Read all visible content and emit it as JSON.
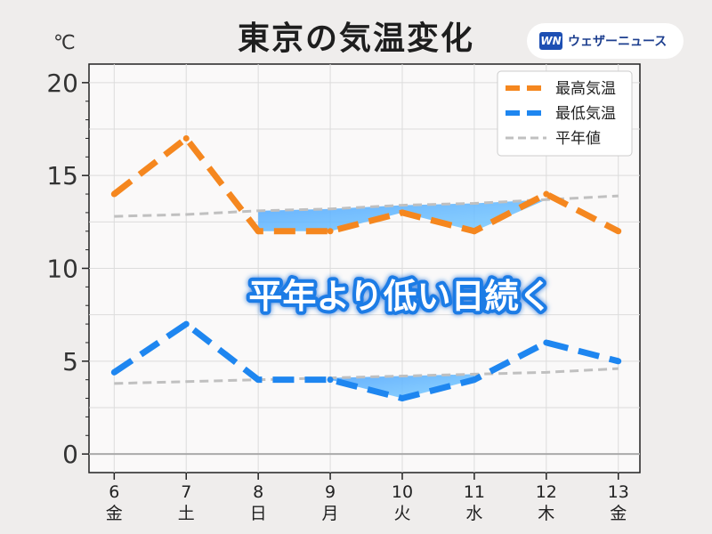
{
  "title": "東京の気温変化",
  "brand": {
    "logo_text": "WN",
    "name": "ウェザーニュース",
    "logo_color": "#1d4fb3"
  },
  "unit": "℃",
  "annotation": "平年より低い日続く",
  "chart_data": {
    "type": "line",
    "x": [
      6,
      7,
      8,
      9,
      10,
      11,
      12,
      13
    ],
    "x_day_labels": [
      "6",
      "7",
      "8",
      "9",
      "10",
      "11",
      "12",
      "13"
    ],
    "x_weekday_labels": [
      "金",
      "土",
      "日",
      "月",
      "火",
      "水",
      "木",
      "金"
    ],
    "x_weekday_colors": [
      "#222222",
      "#1a86e0",
      "#e02020",
      "#222222",
      "#222222",
      "#222222",
      "#222222",
      "#222222"
    ],
    "ylim": [
      -1,
      21
    ],
    "yticks": [
      0,
      5,
      10,
      15,
      20
    ],
    "grid": true,
    "legend_position": "top-right",
    "series": [
      {
        "name": "最高気温",
        "values": [
          14,
          17,
          12,
          12,
          13,
          12,
          14,
          12
        ],
        "color": "#f5871f",
        "style": "dashed"
      },
      {
        "name": "最低気温",
        "values": [
          4.4,
          7,
          4,
          4,
          3,
          4,
          6,
          5
        ],
        "color": "#1e86f0",
        "style": "dashed"
      },
      {
        "name": "平年値",
        "values_high": [
          12.8,
          12.9,
          13.1,
          13.2,
          13.4,
          13.5,
          13.7,
          13.9
        ],
        "values_low": [
          3.8,
          3.9,
          4.0,
          4.1,
          4.2,
          4.3,
          4.4,
          4.6
        ],
        "color": "#c0c0c0",
        "style": "dashed"
      }
    ]
  }
}
